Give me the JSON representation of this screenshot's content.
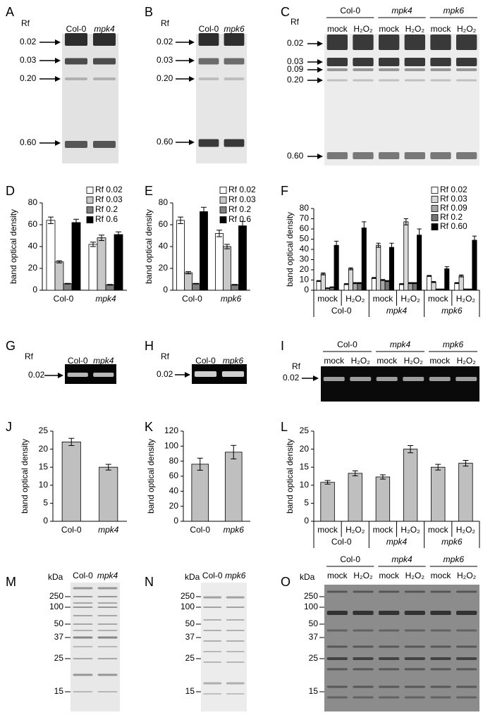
{
  "gels": [
    {
      "panel": "A",
      "rf_label": "Rf",
      "lanes": [
        "Col-0",
        "mpk4"
      ],
      "markers": [
        "0.02",
        "0.03",
        "0.20",
        "0.60"
      ]
    },
    {
      "panel": "B",
      "rf_label": "Rf",
      "lanes": [
        "Col-0",
        "mpk6"
      ],
      "markers": [
        "0.02",
        "0.03",
        "0.20",
        "0.60"
      ]
    },
    {
      "panel": "C",
      "rf_label": "Rf",
      "groups": [
        "Col-0",
        "mpk4",
        "mpk6"
      ],
      "lanes": [
        "mock",
        "H₂O₂",
        "mock",
        "H₂O₂",
        "mock",
        "H₂O₂"
      ],
      "markers": [
        "0.02",
        "0.03",
        "0.09",
        "0.20",
        "0.60"
      ]
    },
    {
      "panel": "G",
      "rf_label": "Rf",
      "lanes": [
        "Col-0",
        "mpk4"
      ],
      "markers": [
        "0.02"
      ]
    },
    {
      "panel": "H",
      "rf_label": "Rf",
      "lanes": [
        "Col-0",
        "mpk6"
      ],
      "markers": [
        "0.02"
      ]
    },
    {
      "panel": "I",
      "rf_label": "Rf",
      "groups": [
        "Col-0",
        "mpk4",
        "mpk6"
      ],
      "lanes": [
        "mock",
        "H₂O₂",
        "mock",
        "H₂O₂",
        "mock",
        "H₂O₂"
      ],
      "markers": [
        "0.02"
      ]
    },
    {
      "panel": "M",
      "unit_label": "kDa",
      "lanes": [
        "Col-0",
        "mpk4"
      ],
      "markers": [
        "250",
        "100",
        "50",
        "37",
        "25",
        "15"
      ]
    },
    {
      "panel": "N",
      "unit_label": "kDa",
      "lanes": [
        "Col-0",
        "mpk6"
      ],
      "markers": [
        "250",
        "100",
        "50",
        "37",
        "25",
        "15"
      ]
    },
    {
      "panel": "O",
      "unit_label": "kDa",
      "groups": [
        "Col-0",
        "mpk4",
        "mpk6"
      ],
      "lanes": [
        "mock",
        "H₂O₂",
        "mock",
        "H₂O₂",
        "mock",
        "H₂O₂"
      ],
      "markers": [
        "250",
        "100",
        "50",
        "37",
        "25",
        "15"
      ]
    }
  ],
  "chart_data": [
    {
      "type": "bar",
      "panel": "D",
      "y_label": "band optical density",
      "categories": [
        "Col-0",
        "mpk4"
      ],
      "series": [
        {
          "name": "Rf 0.02",
          "color": "#ffffff",
          "values": [
            64,
            42
          ],
          "errors": [
            3,
            2
          ]
        },
        {
          "name": "Rf 0.03",
          "color": "#c8c8c8",
          "values": [
            26,
            48
          ],
          "errors": [
            1,
            2.5
          ]
        },
        {
          "name": "Rf 0.2",
          "color": "#808080",
          "values": [
            6,
            5
          ],
          "errors": [
            0.3,
            0.3
          ]
        },
        {
          "name": "Rf 0.6",
          "color": "#000000",
          "values": [
            62,
            51
          ],
          "errors": [
            3,
            2.5
          ]
        }
      ],
      "ylim": [
        0,
        80
      ],
      "yticks": [
        0,
        20,
        40,
        60,
        80
      ]
    },
    {
      "type": "bar",
      "panel": "E",
      "y_label": "band optical density",
      "categories": [
        "Col-0",
        "mpk6"
      ],
      "series": [
        {
          "name": "Rf 0.02",
          "color": "#ffffff",
          "values": [
            64,
            52
          ],
          "errors": [
            3,
            3
          ]
        },
        {
          "name": "Rf 0.03",
          "color": "#c8c8c8",
          "values": [
            16,
            40
          ],
          "errors": [
            1,
            2
          ]
        },
        {
          "name": "Rf 0.2",
          "color": "#808080",
          "values": [
            6,
            5
          ],
          "errors": [
            0.3,
            0.3
          ]
        },
        {
          "name": "Rf 0.6",
          "color": "#000000",
          "values": [
            72,
            59
          ],
          "errors": [
            4,
            4
          ]
        }
      ],
      "ylim": [
        0,
        80
      ],
      "yticks": [
        0,
        20,
        40,
        60,
        80
      ]
    },
    {
      "type": "bar",
      "panel": "F",
      "y_label": "band optical density",
      "categories": [
        "mock",
        "H₂O₂",
        "mock",
        "H₂O₂",
        "mock",
        "H₂O₂"
      ],
      "groups": [
        "Col-0",
        "mpk4",
        "mpk6"
      ],
      "series": [
        {
          "name": "Rf 0.02",
          "color": "#ffffff",
          "values": [
            9,
            6,
            12,
            6,
            14,
            7
          ],
          "errors": [
            0.5,
            0.5,
            0.5,
            0.5,
            0.5,
            0.5
          ]
        },
        {
          "name": "Rf 0.03",
          "color": "#d9d9d9",
          "values": [
            16,
            21,
            44,
            67,
            8,
            14
          ],
          "errors": [
            1,
            1,
            2,
            3,
            0.5,
            1
          ]
        },
        {
          "name": "Rf 0.09",
          "color": "#a6a6a6",
          "values": [
            2,
            7,
            10,
            7,
            1,
            1
          ],
          "errors": [
            0.3,
            0.5,
            0.5,
            0.5,
            0.2,
            0.2
          ]
        },
        {
          "name": "Rf 0.2",
          "color": "#737373",
          "values": [
            3,
            7,
            9,
            7,
            1,
            1
          ],
          "errors": [
            0.3,
            0.5,
            0.5,
            0.5,
            0.2,
            0.2
          ]
        },
        {
          "name": "Rf 0.60",
          "color": "#000000",
          "values": [
            44,
            61,
            42,
            54,
            21,
            49
          ],
          "errors": [
            4,
            6,
            4,
            6,
            2,
            4
          ]
        }
      ],
      "ylim": [
        0,
        80
      ],
      "yticks": [
        0,
        10,
        20,
        30,
        40,
        50,
        60,
        70,
        80
      ]
    },
    {
      "type": "bar",
      "panel": "J",
      "y_label": "band optical density",
      "categories": [
        "Col-0",
        "mpk4"
      ],
      "values": [
        22,
        15
      ],
      "errors": [
        1,
        0.8
      ],
      "color": "#bfbfbf",
      "ylim": [
        0,
        25
      ],
      "yticks": [
        0,
        5,
        10,
        15,
        20,
        25
      ]
    },
    {
      "type": "bar",
      "panel": "K",
      "y_label": "band optical density",
      "categories": [
        "Col-0",
        "mpk6"
      ],
      "values": [
        76,
        92
      ],
      "errors": [
        8,
        9
      ],
      "color": "#bfbfbf",
      "ylim": [
        0,
        120
      ],
      "yticks": [
        0,
        20,
        40,
        60,
        80,
        100,
        120
      ]
    },
    {
      "type": "bar",
      "panel": "L",
      "y_label": "band optical density",
      "categories": [
        "mock",
        "H₂O₂",
        "mock",
        "H₂O₂",
        "mock",
        "H₂O₂"
      ],
      "groups": [
        "Col-0",
        "mpk4",
        "mpk6"
      ],
      "values": [
        10.8,
        13.3,
        12.3,
        20,
        15,
        16.1
      ],
      "errors": [
        0.5,
        0.7,
        0.6,
        1,
        0.8,
        0.8
      ],
      "color": "#bfbfbf",
      "ylim": [
        0,
        25
      ],
      "yticks": [
        0,
        5,
        10,
        15,
        20,
        25
      ]
    }
  ]
}
